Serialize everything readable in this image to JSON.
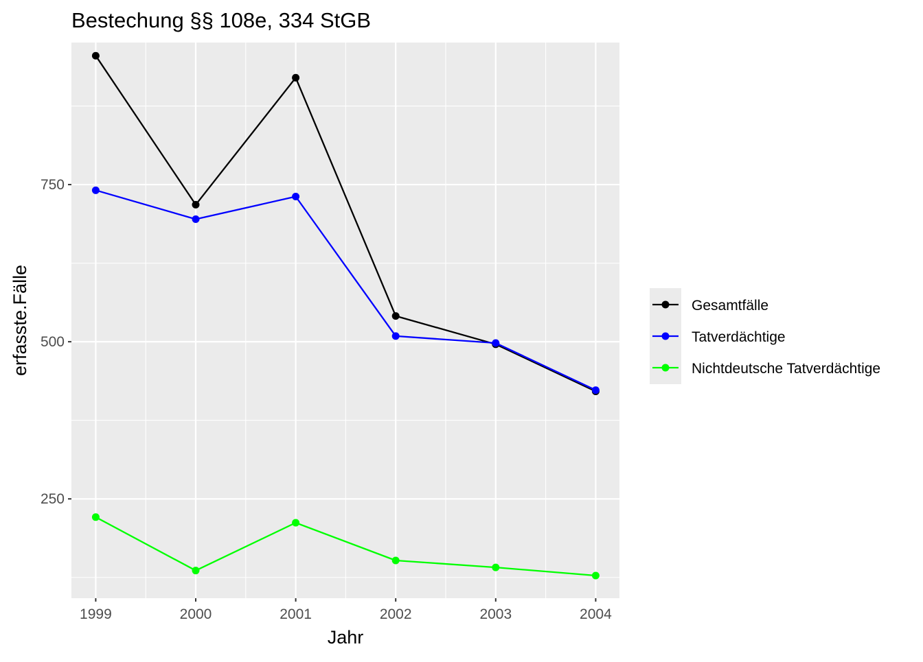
{
  "chart_data": {
    "type": "line",
    "title": "Bestechung §§ 108e, 334 StGB",
    "xlabel": "Jahr",
    "ylabel": "erfasste.Fälle",
    "x": [
      "1999",
      "2000",
      "2001",
      "2002",
      "2003",
      "2004"
    ],
    "y_ticks": [
      "250",
      "500",
      "750"
    ],
    "ylim": [
      92,
      976
    ],
    "grid": true,
    "legend_position": "right",
    "series": [
      {
        "name": "Gesamtfälle",
        "color": "#000000",
        "values": [
          955,
          718,
          920,
          541,
          496,
          421
        ]
      },
      {
        "name": "Tatverdächtige",
        "color": "#0000ff",
        "values": [
          741,
          695,
          731,
          509,
          498,
          423
        ]
      },
      {
        "name": "Nichtdeutsche Tatverdächtige",
        "color": "#00ff00",
        "values": [
          221,
          136,
          212,
          152,
          141,
          128
        ]
      }
    ]
  }
}
